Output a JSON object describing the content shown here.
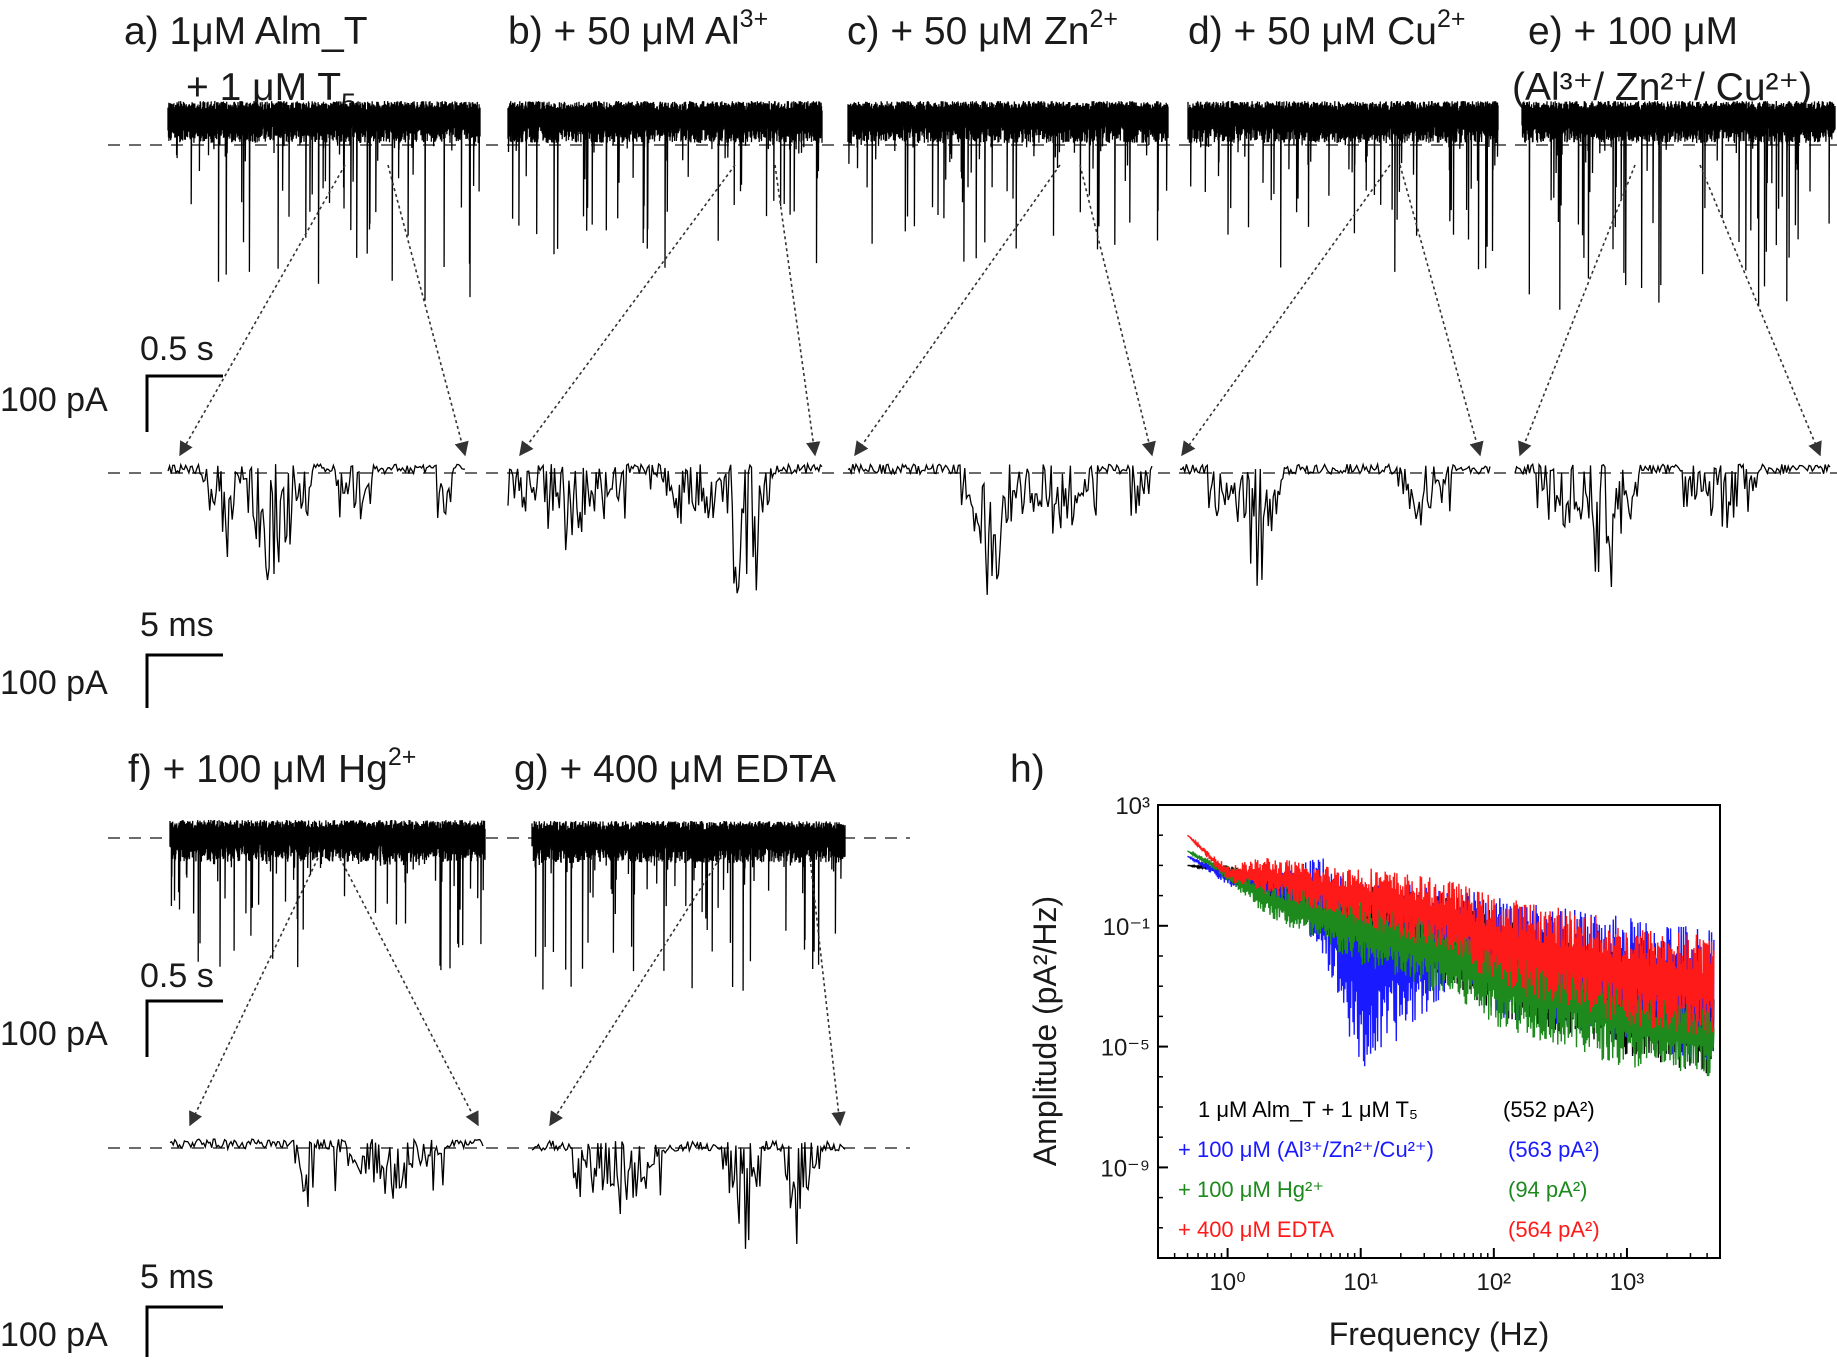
{
  "panels": [
    {
      "id": "a",
      "title_lines": [
        {
          "text": "a)   1μM Alm_T"
        },
        {
          "text": "+ 1 μM T",
          "sub": "5"
        }
      ]
    },
    {
      "id": "b",
      "title_lines": [
        {
          "text": "b) + 50 μM Al",
          "sup": "3+"
        }
      ]
    },
    {
      "id": "c",
      "title_lines": [
        {
          "text": "c) + 50 μM Zn",
          "sup": "2+"
        }
      ]
    },
    {
      "id": "d",
      "title_lines": [
        {
          "text": "d) + 50 μM Cu",
          "sup": "2+"
        }
      ]
    },
    {
      "id": "e",
      "title_lines": [
        {
          "text": "e)   + 100 μM"
        },
        {
          "text": "(Al³⁺/ Zn²⁺/ Cu²⁺)"
        }
      ]
    },
    {
      "id": "f",
      "title_lines": [
        {
          "text": "f) + 100 μM Hg",
          "sup": "2+"
        }
      ]
    },
    {
      "id": "g",
      "title_lines": [
        {
          "text": "g) + 400 μM EDTA"
        }
      ]
    },
    {
      "id": "h",
      "title_lines": [
        {
          "text": "h)"
        }
      ]
    }
  ],
  "scale_bars": {
    "long": {
      "time": "0.5 s",
      "current": "100 pA"
    },
    "short": {
      "time": "5 ms",
      "current": "100 pA"
    }
  },
  "chart_data": {
    "type": "line",
    "xlabel": "Frequency (Hz)",
    "ylabel": "Amplitude (pA²/Hz)",
    "x_scale": "log",
    "y_scale": "log",
    "xlim": [
      0.3,
      5000
    ],
    "ylim": [
      1e-12,
      1000
    ],
    "x_ticks": [
      {
        "value": 1,
        "label": "10⁰"
      },
      {
        "value": 10,
        "label": "10¹"
      },
      {
        "value": 100,
        "label": "10²"
      },
      {
        "value": 1000,
        "label": "10³"
      }
    ],
    "y_ticks": [
      {
        "value": 1000,
        "label": "10³"
      },
      {
        "value": 0.1,
        "label": "10⁻¹"
      },
      {
        "value": 1e-05,
        "label": "10⁻⁵"
      },
      {
        "value": 1e-09,
        "label": "10⁻⁹"
      }
    ],
    "legend_position": "bottom-left",
    "series": [
      {
        "name": "1 μM Alm_T + 1 μM T₅",
        "note": "(552 pA²)",
        "color": "#000000",
        "x": [
          0.5,
          1,
          2,
          5,
          10,
          50,
          100,
          500,
          1000,
          4500
        ],
        "upper": [
          10,
          10,
          5,
          3,
          3,
          1,
          0.3,
          0.03,
          0.01,
          0.001
        ],
        "lower": [
          10,
          5,
          1,
          0.05,
          0.01,
          0.001,
          0.0001,
          2e-05,
          5e-06,
          1e-06
        ]
      },
      {
        "name": "+ 100 μM (Al³⁺/Zn²⁺/Cu²⁺)",
        "note": "(563 pA²)",
        "color": "#1a1aff",
        "x": [
          0.5,
          1,
          2,
          5,
          10,
          50,
          100,
          500,
          1000,
          4500
        ],
        "upper": [
          20,
          8,
          4,
          20,
          3,
          2,
          1,
          0.3,
          0.2,
          0.1
        ],
        "lower": [
          20,
          2,
          1,
          0.02,
          1e-06,
          0.001,
          0.0001,
          3e-05,
          1e-05,
          3e-06
        ]
      },
      {
        "name": "+ 100 μM Hg²⁺",
        "note": "(94 pA²)",
        "color": "#1e8a1e",
        "x": [
          0.5,
          1,
          2,
          5,
          10,
          50,
          100,
          500,
          1000,
          4500
        ],
        "upper": [
          30,
          10,
          3,
          2,
          1,
          0.3,
          0.1,
          0.01,
          0.003,
          0.0003
        ],
        "lower": [
          30,
          3,
          0.2,
          0.02,
          0.005,
          0.0003,
          5e-05,
          5e-06,
          2e-06,
          1e-06
        ]
      },
      {
        "name": "+ 400 μM EDTA",
        "note": "(564 pA²)",
        "color": "#ff1a1a",
        "x": [
          0.5,
          1,
          2,
          5,
          10,
          50,
          100,
          500,
          1000,
          4500
        ],
        "upper": [
          100,
          10,
          20,
          10,
          10,
          3,
          1,
          0.3,
          0.1,
          0.05
        ],
        "lower": [
          100,
          3,
          1,
          0.3,
          0.1,
          0.01,
          0.001,
          0.0001,
          5e-05,
          2e-05
        ]
      }
    ]
  }
}
